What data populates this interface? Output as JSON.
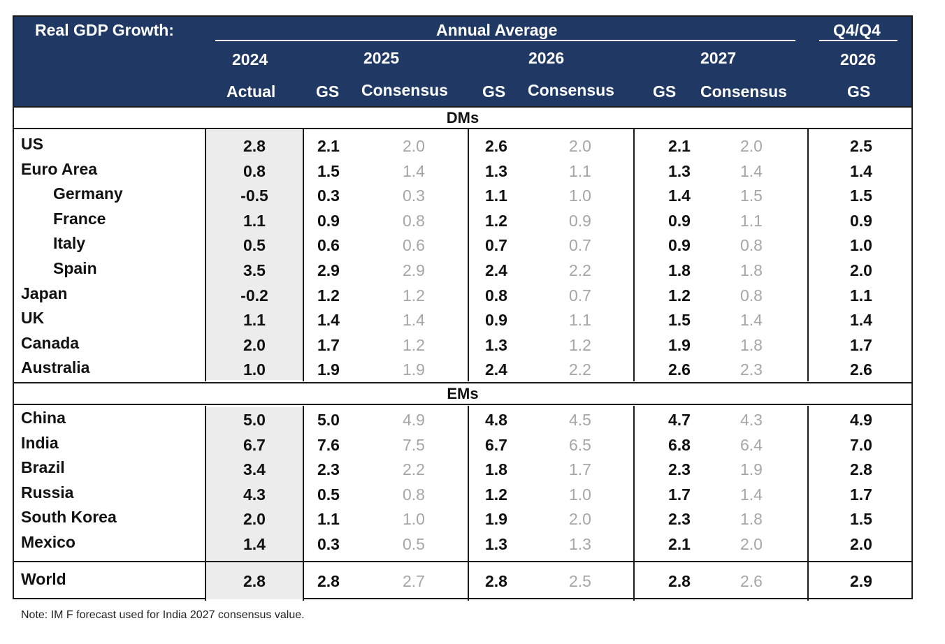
{
  "header": {
    "title": "Real GDP Growth:",
    "annual_average": "Annual Average",
    "q4q4": "Q4/Q4",
    "years": [
      "2024",
      "2025",
      "2026",
      "2027",
      "2026"
    ],
    "subheads": [
      "Actual",
      "GS",
      "Consensus",
      "GS",
      "Consensus",
      "GS",
      "Consensus",
      "GS"
    ]
  },
  "sections": {
    "dm": "DMs",
    "em": "EMs"
  },
  "note": "Note: IM F forecast used for India 2027 consensus value.",
  "chart_data": {
    "type": "table",
    "title": "Real GDP Growth:",
    "columns": [
      "2024 Actual",
      "2025 GS",
      "2025 Consensus",
      "2026 GS",
      "2026 Consensus",
      "2027 GS",
      "2027 Consensus",
      "Q4/Q4 2026 GS"
    ],
    "dm_rows": [
      {
        "name": "US",
        "indent": false,
        "values": [
          "2.8",
          "2.1",
          "2.0",
          "2.6",
          "2.0",
          "2.1",
          "2.0",
          "2.5"
        ]
      },
      {
        "name": "Euro Area",
        "indent": false,
        "values": [
          "0.8",
          "1.5",
          "1.4",
          "1.3",
          "1.1",
          "1.3",
          "1.4",
          "1.4"
        ]
      },
      {
        "name": "Germany",
        "indent": true,
        "values": [
          "-0.5",
          "0.3",
          "0.3",
          "1.1",
          "1.0",
          "1.4",
          "1.5",
          "1.5"
        ]
      },
      {
        "name": "France",
        "indent": true,
        "values": [
          "1.1",
          "0.9",
          "0.8",
          "1.2",
          "0.9",
          "0.9",
          "1.1",
          "0.9"
        ]
      },
      {
        "name": "Italy",
        "indent": true,
        "values": [
          "0.5",
          "0.6",
          "0.6",
          "0.7",
          "0.7",
          "0.9",
          "0.8",
          "1.0"
        ]
      },
      {
        "name": "Spain",
        "indent": true,
        "values": [
          "3.5",
          "2.9",
          "2.9",
          "2.4",
          "2.2",
          "1.8",
          "1.8",
          "2.0"
        ]
      },
      {
        "name": "Japan",
        "indent": false,
        "values": [
          "-0.2",
          "1.2",
          "1.2",
          "0.8",
          "0.7",
          "1.2",
          "0.8",
          "1.1"
        ]
      },
      {
        "name": "UK",
        "indent": false,
        "values": [
          "1.1",
          "1.4",
          "1.4",
          "0.9",
          "1.1",
          "1.5",
          "1.4",
          "1.4"
        ]
      },
      {
        "name": "Canada",
        "indent": false,
        "values": [
          "2.0",
          "1.7",
          "1.2",
          "1.3",
          "1.2",
          "1.9",
          "1.8",
          "1.7"
        ]
      },
      {
        "name": "Australia",
        "indent": false,
        "values": [
          "1.0",
          "1.9",
          "1.9",
          "2.4",
          "2.2",
          "2.6",
          "2.3",
          "2.6"
        ]
      }
    ],
    "em_rows": [
      {
        "name": "China",
        "indent": false,
        "values": [
          "5.0",
          "5.0",
          "4.9",
          "4.8",
          "4.5",
          "4.7",
          "4.3",
          "4.9"
        ]
      },
      {
        "name": "India",
        "indent": false,
        "values": [
          "6.7",
          "7.6",
          "7.5",
          "6.7",
          "6.5",
          "6.8",
          "6.4",
          "7.0"
        ]
      },
      {
        "name": "Brazil",
        "indent": false,
        "values": [
          "3.4",
          "2.3",
          "2.2",
          "1.8",
          "1.7",
          "2.3",
          "1.9",
          "2.8"
        ]
      },
      {
        "name": "Russia",
        "indent": false,
        "values": [
          "4.3",
          "0.5",
          "0.8",
          "1.2",
          "1.0",
          "1.7",
          "1.4",
          "1.7"
        ]
      },
      {
        "name": "South Korea",
        "indent": false,
        "values": [
          "2.0",
          "1.1",
          "1.0",
          "1.9",
          "2.0",
          "2.3",
          "1.8",
          "1.5"
        ]
      },
      {
        "name": "Mexico",
        "indent": false,
        "values": [
          "1.4",
          "0.3",
          "0.5",
          "1.3",
          "1.3",
          "2.1",
          "2.0",
          "2.0"
        ]
      }
    ],
    "total_row": {
      "name": "World",
      "values": [
        "2.8",
        "2.8",
        "2.7",
        "2.8",
        "2.5",
        "2.8",
        "2.6",
        "2.9"
      ]
    },
    "colors": {
      "header_bg": "#1f3864",
      "consensus_text": "#a6a6a6",
      "actual_shade": "#ececec"
    }
  }
}
